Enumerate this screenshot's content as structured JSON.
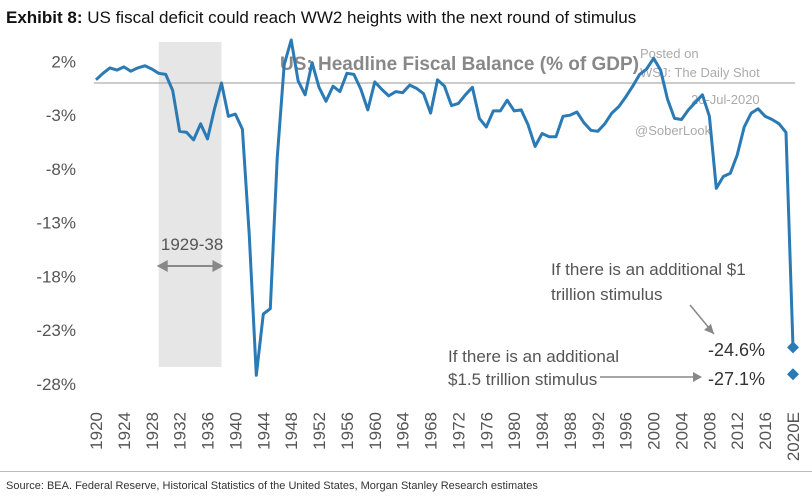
{
  "header": {
    "exhibit_label": "Exhibit 8:",
    "exhibit_title": "US fiscal deficit could reach WW2 heights with the next round of stimulus"
  },
  "watermark": {
    "posted_on": "Posted on",
    "site": "WSJ: The Daily Shot",
    "date": "20-Jul-2020",
    "handle": "@SoberLook"
  },
  "chart_data": {
    "type": "line",
    "title": "US: Headline Fiscal Balance (% of GDP)",
    "xlabel": "",
    "ylabel": "",
    "x_ticks": [
      "1920",
      "1924",
      "1928",
      "1932",
      "1936",
      "1940",
      "1944",
      "1948",
      "1952",
      "1956",
      "1960",
      "1964",
      "1968",
      "1972",
      "1976",
      "1980",
      "1984",
      "1988",
      "1992",
      "1996",
      "2000",
      "2004",
      "2008",
      "2012",
      "2016",
      "2020E"
    ],
    "y_ticks": [
      "2%",
      "-3%",
      "-8%",
      "-13%",
      "-18%",
      "-23%",
      "-28%"
    ],
    "ylim": [
      -29.5,
      4
    ],
    "xlim": [
      1920,
      2020
    ],
    "grid": false,
    "legend": "none",
    "line_color": "#2a7ab5",
    "shaded_range": {
      "from": 1929,
      "to": 1938,
      "label": "1929-38",
      "color": "#e6e6e6"
    },
    "series": [
      {
        "values": [
          {
            "x": 1920,
            "y": 0.3
          },
          {
            "x": 1921,
            "y": 0.9
          },
          {
            "x": 1922,
            "y": 1.4
          },
          {
            "x": 1923,
            "y": 1.2
          },
          {
            "x": 1924,
            "y": 1.5
          },
          {
            "x": 1925,
            "y": 1.1
          },
          {
            "x": 1926,
            "y": 1.4
          },
          {
            "x": 1927,
            "y": 1.6
          },
          {
            "x": 1928,
            "y": 1.3
          },
          {
            "x": 1929,
            "y": 0.9
          },
          {
            "x": 1930,
            "y": 0.8
          },
          {
            "x": 1931,
            "y": -0.7
          },
          {
            "x": 1932,
            "y": -4.5
          },
          {
            "x": 1933,
            "y": -4.6
          },
          {
            "x": 1934,
            "y": -5.3
          },
          {
            "x": 1935,
            "y": -3.8
          },
          {
            "x": 1936,
            "y": -5.2
          },
          {
            "x": 1937,
            "y": -2.4
          },
          {
            "x": 1938,
            "y": 0.0
          },
          {
            "x": 1939,
            "y": -3.1
          },
          {
            "x": 1940,
            "y": -2.9
          },
          {
            "x": 1941,
            "y": -4.3
          },
          {
            "x": 1942,
            "y": -14.2
          },
          {
            "x": 1943,
            "y": -27.2
          },
          {
            "x": 1944,
            "y": -21.5
          },
          {
            "x": 1945,
            "y": -21.0
          },
          {
            "x": 1946,
            "y": -7.0
          },
          {
            "x": 1947,
            "y": 1.7
          },
          {
            "x": 1948,
            "y": 4.0
          },
          {
            "x": 1949,
            "y": 0.2
          },
          {
            "x": 1950,
            "y": -1.1
          },
          {
            "x": 1951,
            "y": 1.9
          },
          {
            "x": 1952,
            "y": -0.4
          },
          {
            "x": 1953,
            "y": -1.7
          },
          {
            "x": 1954,
            "y": -0.3
          },
          {
            "x": 1955,
            "y": -0.8
          },
          {
            "x": 1956,
            "y": 0.9
          },
          {
            "x": 1957,
            "y": 0.8
          },
          {
            "x": 1958,
            "y": -0.6
          },
          {
            "x": 1959,
            "y": -2.5
          },
          {
            "x": 1960,
            "y": 0.1
          },
          {
            "x": 1961,
            "y": -0.6
          },
          {
            "x": 1962,
            "y": -1.2
          },
          {
            "x": 1963,
            "y": -0.8
          },
          {
            "x": 1964,
            "y": -0.9
          },
          {
            "x": 1965,
            "y": -0.2
          },
          {
            "x": 1966,
            "y": -0.5
          },
          {
            "x": 1967,
            "y": -1.0
          },
          {
            "x": 1968,
            "y": -2.8
          },
          {
            "x": 1969,
            "y": 0.3
          },
          {
            "x": 1970,
            "y": -0.3
          },
          {
            "x": 1971,
            "y": -2.1
          },
          {
            "x": 1972,
            "y": -1.9
          },
          {
            "x": 1973,
            "y": -1.1
          },
          {
            "x": 1974,
            "y": -0.4
          },
          {
            "x": 1975,
            "y": -3.3
          },
          {
            "x": 1976,
            "y": -4.1
          },
          {
            "x": 1977,
            "y": -2.6
          },
          {
            "x": 1978,
            "y": -2.6
          },
          {
            "x": 1979,
            "y": -1.6
          },
          {
            "x": 1980,
            "y": -2.6
          },
          {
            "x": 1981,
            "y": -2.5
          },
          {
            "x": 1982,
            "y": -3.9
          },
          {
            "x": 1983,
            "y": -5.9
          },
          {
            "x": 1984,
            "y": -4.7
          },
          {
            "x": 1985,
            "y": -5.0
          },
          {
            "x": 1986,
            "y": -5.0
          },
          {
            "x": 1987,
            "y": -3.1
          },
          {
            "x": 1988,
            "y": -3.0
          },
          {
            "x": 1989,
            "y": -2.7
          },
          {
            "x": 1990,
            "y": -3.7
          },
          {
            "x": 1991,
            "y": -4.4
          },
          {
            "x": 1992,
            "y": -4.5
          },
          {
            "x": 1993,
            "y": -3.8
          },
          {
            "x": 1994,
            "y": -2.8
          },
          {
            "x": 1995,
            "y": -2.2
          },
          {
            "x": 1996,
            "y": -1.3
          },
          {
            "x": 1997,
            "y": -0.3
          },
          {
            "x": 1998,
            "y": 0.8
          },
          {
            "x": 1999,
            "y": 1.3
          },
          {
            "x": 2000,
            "y": 2.3
          },
          {
            "x": 2001,
            "y": 1.2
          },
          {
            "x": 2002,
            "y": -1.5
          },
          {
            "x": 2003,
            "y": -3.3
          },
          {
            "x": 2004,
            "y": -3.4
          },
          {
            "x": 2005,
            "y": -2.5
          },
          {
            "x": 2006,
            "y": -1.8
          },
          {
            "x": 2007,
            "y": -1.1
          },
          {
            "x": 2008,
            "y": -3.1
          },
          {
            "x": 2009,
            "y": -9.8
          },
          {
            "x": 2010,
            "y": -8.7
          },
          {
            "x": 2011,
            "y": -8.4
          },
          {
            "x": 2012,
            "y": -6.7
          },
          {
            "x": 2013,
            "y": -4.1
          },
          {
            "x": 2014,
            "y": -2.8
          },
          {
            "x": 2015,
            "y": -2.4
          },
          {
            "x": 2016,
            "y": -3.1
          },
          {
            "x": 2017,
            "y": -3.4
          },
          {
            "x": 2018,
            "y": -3.8
          },
          {
            "x": 2019,
            "y": -4.6
          },
          {
            "x": 2020,
            "y": -24.6
          }
        ]
      }
    ],
    "scenario_points": [
      {
        "x": 2020,
        "y": -24.6,
        "value_label": "-24.6%",
        "label_lines": [
          "If there is an additional $1",
          "trillion stimulus"
        ]
      },
      {
        "x": 2020,
        "y": -27.1,
        "value_label": "-27.1%",
        "label_lines": [
          "If there is an additional",
          "$1.5 trillion stimulus"
        ]
      }
    ]
  },
  "source": "Source: BEA. Federal Reserve, Historical Statistics of the United States, Morgan Stanley Research estimates"
}
